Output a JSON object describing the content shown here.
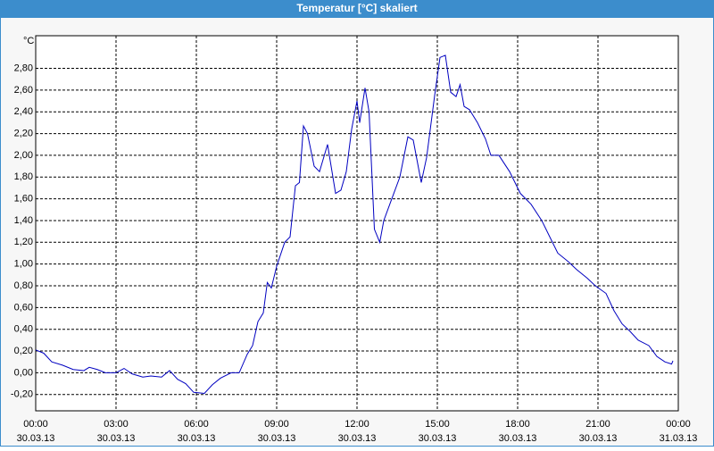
{
  "chart_data": {
    "type": "line",
    "title": "Temperatur [°C] skaliert",
    "y_unit": "°C",
    "x": [
      0,
      0.3,
      0.6,
      1.0,
      1.4,
      1.8,
      2.0,
      2.3,
      2.6,
      3.0,
      3.3,
      3.6,
      4.0,
      4.3,
      4.7,
      5.0,
      5.3,
      5.6,
      5.9,
      6.3,
      6.6,
      6.9,
      7.3,
      7.6,
      7.9,
      8.1,
      8.3,
      8.5,
      8.65,
      8.8,
      9.0,
      9.3,
      9.5,
      9.7,
      9.85,
      10.0,
      10.15,
      10.4,
      10.6,
      10.9,
      11.2,
      11.4,
      11.6,
      11.8,
      12.0,
      12.1,
      12.3,
      12.45,
      12.65,
      12.85,
      13.0,
      13.3,
      13.6,
      13.9,
      14.1,
      14.4,
      14.6,
      14.9,
      15.1,
      15.3,
      15.5,
      15.7,
      15.85,
      16.0,
      16.2,
      16.5,
      16.8,
      17.0,
      17.3,
      17.7,
      18.1,
      18.5,
      18.9,
      19.2,
      19.5,
      19.9,
      20.2,
      20.6,
      20.9,
      21.3,
      21.6,
      21.9,
      22.2,
      22.5,
      22.9,
      23.2,
      23.5,
      23.75,
      23.8
    ],
    "series": [
      {
        "name": "Temperatur",
        "color": "#0000c0",
        "values": [
          0.21,
          0.18,
          0.1,
          0.07,
          0.03,
          0.02,
          0.05,
          0.03,
          0.0,
          0.0,
          0.04,
          -0.01,
          -0.04,
          -0.03,
          -0.04,
          0.02,
          -0.06,
          -0.1,
          -0.18,
          -0.19,
          -0.11,
          -0.05,
          0.0,
          0.0,
          0.17,
          0.25,
          0.47,
          0.55,
          0.83,
          0.78,
          0.98,
          1.2,
          1.25,
          1.72,
          1.75,
          2.27,
          2.2,
          1.9,
          1.85,
          2.1,
          1.65,
          1.68,
          1.85,
          2.24,
          2.5,
          2.3,
          2.62,
          2.4,
          1.32,
          1.2,
          1.4,
          1.6,
          1.8,
          2.17,
          2.14,
          1.75,
          1.98,
          2.55,
          2.9,
          2.92,
          2.58,
          2.54,
          2.65,
          2.45,
          2.42,
          2.3,
          2.15,
          2.0,
          2.0,
          1.85,
          1.65,
          1.55,
          1.4,
          1.25,
          1.1,
          1.02,
          0.95,
          0.87,
          0.8,
          0.73,
          0.57,
          0.45,
          0.38,
          0.3,
          0.25,
          0.15,
          0.1,
          0.08,
          0.11
        ]
      }
    ],
    "xlim": [
      0,
      24
    ],
    "xticks": [
      {
        "value": 0,
        "label": "00:00"
      },
      {
        "value": 3,
        "label": "03:00"
      },
      {
        "value": 6,
        "label": "06:00"
      },
      {
        "value": 9,
        "label": "09:00"
      },
      {
        "value": 12,
        "label": "12:00"
      },
      {
        "value": 15,
        "label": "15:00"
      },
      {
        "value": 18,
        "label": "18:00"
      },
      {
        "value": 21,
        "label": "21:00"
      },
      {
        "value": 24,
        "label": "00:00"
      }
    ],
    "xtick_dates": [
      "30.03.13",
      "30.03.13",
      "30.03.13",
      "30.03.13",
      "30.03.13",
      "30.03.13",
      "30.03.13",
      "30.03.13",
      "31.03.13"
    ],
    "ylim": [
      -0.35,
      3.1
    ],
    "yticks": [
      {
        "value": -0.2,
        "label": "-0,20"
      },
      {
        "value": 0,
        "label": "0,00"
      },
      {
        "value": 0.2,
        "label": "0,20"
      },
      {
        "value": 0.4,
        "label": "0,40"
      },
      {
        "value": 0.6,
        "label": "0,60"
      },
      {
        "value": 0.8,
        "label": "0,80"
      },
      {
        "value": 1.0,
        "label": "1,00"
      },
      {
        "value": 1.2,
        "label": "1,20"
      },
      {
        "value": 1.4,
        "label": "1,40"
      },
      {
        "value": 1.6,
        "label": "1,60"
      },
      {
        "value": 1.8,
        "label": "1,80"
      },
      {
        "value": 2.0,
        "label": "2,00"
      },
      {
        "value": 2.2,
        "label": "2,20"
      },
      {
        "value": 2.4,
        "label": "2,40"
      },
      {
        "value": 2.6,
        "label": "2,60"
      },
      {
        "value": 2.8,
        "label": "2,80"
      }
    ],
    "grid": true
  }
}
